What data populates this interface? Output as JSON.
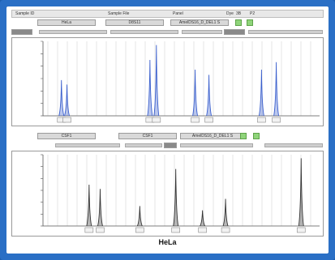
{
  "top_panel": {
    "header": {
      "sample_label": "Sample ID",
      "file_label": "Sample File",
      "panel_label": "Panel",
      "dye_label": "Dye",
      "dye_value": "3B",
      "peak_label": "P2"
    },
    "subheader": {
      "sample": "HeLa",
      "marker1": "D8S11",
      "marker2": "AmelDS16_D_DEL1 S"
    }
  },
  "bottom_panel": {
    "subheader": {
      "sample": "CSF1",
      "marker1": "CSF1",
      "marker2": "AmelDS16_D_DEL1 S"
    }
  },
  "caption": "HeLa",
  "colors": {
    "frame": "#2a6fc5",
    "trace_top": "#3a5fcd",
    "trace_bottom": "#333333",
    "green": "#8fd47a"
  },
  "chart_data": [
    {
      "type": "line",
      "title": "",
      "series": [
        {
          "name": "",
          "peaks": [
            80,
            86,
            176,
            183,
            225,
            240,
            297,
            313
          ]
        }
      ],
      "ylim": [
        0,
        1400
      ]
    },
    {
      "type": "line",
      "title": "",
      "series": [
        {
          "name": "",
          "peaks": [
            110,
            122,
            165,
            204,
            233,
            258,
            340
          ]
        }
      ],
      "ylim": [
        0,
        3500
      ]
    }
  ]
}
